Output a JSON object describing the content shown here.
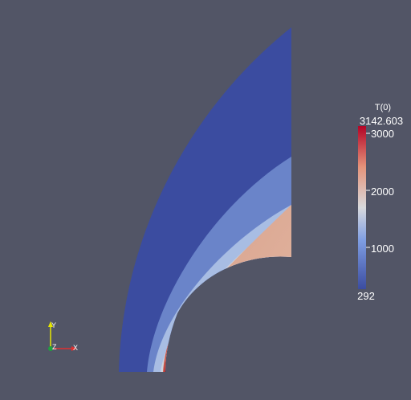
{
  "colors": {
    "background": "#525566",
    "cold": "#3b4ca0",
    "band_mid": "#6d86cc",
    "band_light": "#b3c3e6",
    "warm": "#ddaa92",
    "hot": "#c2433d",
    "hottest": "#a91422"
  },
  "legend": {
    "title": "T(0)",
    "max_label": "3142.603",
    "min_label": "292",
    "ticks": [
      "3000",
      "2000",
      "1000"
    ],
    "min": 292,
    "max": 3142.603,
    "tick_values": [
      3000,
      2000,
      1000
    ]
  },
  "axes": {
    "y_label": "Y",
    "z_label": "Z",
    "x_label": "X",
    "y_color": "#e6e600",
    "x_color": "#e03030",
    "z_color": "#20a040"
  }
}
